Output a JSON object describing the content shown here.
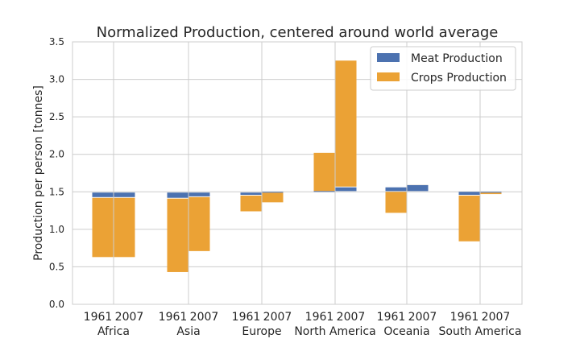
{
  "chart_data": {
    "type": "bar",
    "title": "Normalized Production, centered around world average",
    "ylabel": "Production per person [tonnes]",
    "xlabel": "",
    "ylim": [
      0,
      3.5
    ],
    "yticks": [
      "0.0",
      "0.5",
      "1.0",
      "1.5",
      "2.0",
      "2.5",
      "3.0",
      "3.5"
    ],
    "baseline": 1.5,
    "grid": true,
    "legend_position": "top-right",
    "categories": [
      "Africa",
      "Asia",
      "Europe",
      "North America",
      "Oceania",
      "South America"
    ],
    "years": [
      "1961",
      "2007"
    ],
    "colors": {
      "meat": "#4c72b0",
      "crops": "#eba235"
    },
    "bars": [
      {
        "region": "Africa",
        "year": "1961",
        "meat": [
          1.49,
          1.43
        ],
        "crops": [
          1.42,
          0.63
        ]
      },
      {
        "region": "Africa",
        "year": "2007",
        "meat": [
          1.49,
          1.43
        ],
        "crops": [
          1.42,
          0.63
        ]
      },
      {
        "region": "Asia",
        "year": "1961",
        "meat": [
          1.49,
          1.42
        ],
        "crops": [
          1.41,
          0.43
        ]
      },
      {
        "region": "Asia",
        "year": "2007",
        "meat": [
          1.49,
          1.44
        ],
        "crops": [
          1.43,
          0.71
        ]
      },
      {
        "region": "Europe",
        "year": "1961",
        "meat": [
          1.49,
          1.46
        ],
        "crops": [
          1.45,
          1.24
        ]
      },
      {
        "region": "Europe",
        "year": "2007",
        "meat": [
          1.5,
          1.5
        ],
        "crops": [
          1.49,
          1.36
        ]
      },
      {
        "region": "North America",
        "year": "1961",
        "meat": [
          1.51,
          1.51
        ],
        "crops": [
          1.51,
          2.02
        ]
      },
      {
        "region": "North America",
        "year": "2007",
        "meat": [
          1.51,
          1.56
        ],
        "crops": [
          1.57,
          3.25
        ]
      },
      {
        "region": "Oceania",
        "year": "1961",
        "meat": [
          1.51,
          1.56
        ],
        "crops": [
          1.5,
          1.22
        ]
      },
      {
        "region": "Oceania",
        "year": "2007",
        "meat": [
          1.51,
          1.59
        ],
        "crops": [
          1.59,
          1.59
        ]
      },
      {
        "region": "South America",
        "year": "1961",
        "meat": [
          1.5,
          1.46
        ],
        "crops": [
          1.45,
          0.84
        ]
      },
      {
        "region": "South America",
        "year": "2007",
        "meat": [
          1.5,
          1.49
        ],
        "crops": [
          1.49,
          1.47
        ]
      }
    ],
    "series": [
      {
        "key": "meat",
        "name": "Meat Production"
      },
      {
        "key": "crops",
        "name": "Crops Production"
      }
    ]
  }
}
